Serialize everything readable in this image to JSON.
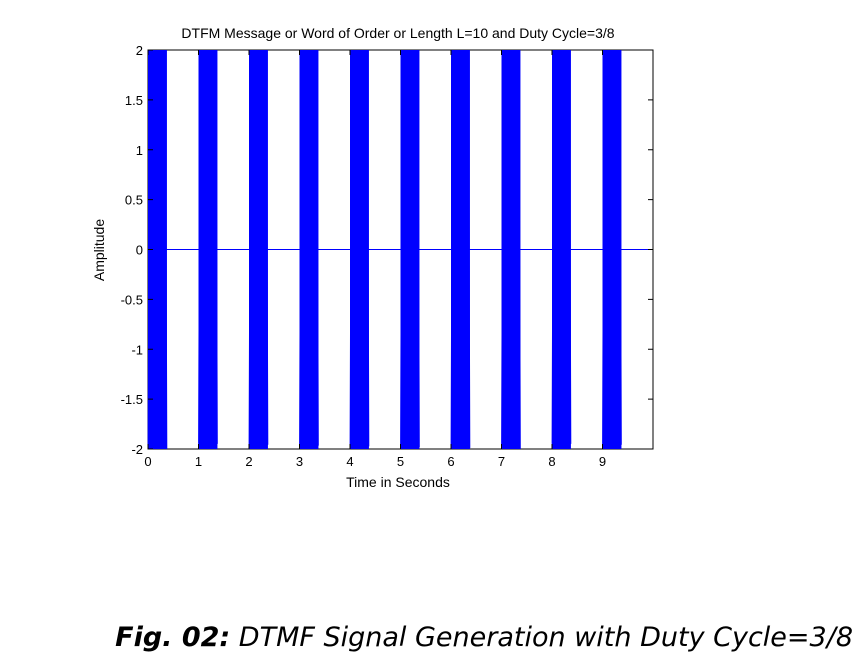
{
  "chart_data": {
    "type": "line",
    "title": "DTFM Message or Word of Order or Length L=10 and Duty Cycle=3/8",
    "xlabel": "Time in Seconds",
    "ylabel": "Amplitude",
    "xlim": [
      0,
      10
    ],
    "ylim": [
      -2,
      2
    ],
    "xticks": [
      0,
      1,
      2,
      3,
      4,
      5,
      6,
      7,
      8,
      9
    ],
    "yticks": [
      2,
      1.5,
      1,
      0.5,
      0,
      -0.5,
      -1,
      -1.5,
      -2
    ],
    "ytick_labels": [
      "2",
      "1.5",
      "1",
      "0.5",
      "0",
      "-0.5",
      "-1",
      "-1.5",
      "-2"
    ],
    "series_color": "#0000ff",
    "baseline": 0,
    "duty_cycle": "3/8",
    "bursts": [
      {
        "start": 0.0,
        "end": 0.375,
        "amplitude": 2
      },
      {
        "start": 1.0,
        "end": 1.375,
        "amplitude": 2
      },
      {
        "start": 2.0,
        "end": 2.375,
        "amplitude": 2
      },
      {
        "start": 3.0,
        "end": 3.375,
        "amplitude": 2
      },
      {
        "start": 4.0,
        "end": 4.375,
        "amplitude": 2
      },
      {
        "start": 5.0,
        "end": 5.375,
        "amplitude": 2
      },
      {
        "start": 6.0,
        "end": 6.375,
        "amplitude": 2
      },
      {
        "start": 7.0,
        "end": 7.375,
        "amplitude": 2
      },
      {
        "start": 8.0,
        "end": 8.375,
        "amplitude": 2
      },
      {
        "start": 9.0,
        "end": 9.375,
        "amplitude": 2
      }
    ]
  },
  "caption": {
    "prefix": "Fig. 02:",
    "text": " DTMF Signal Generation with  Duty Cycle=3/8"
  }
}
